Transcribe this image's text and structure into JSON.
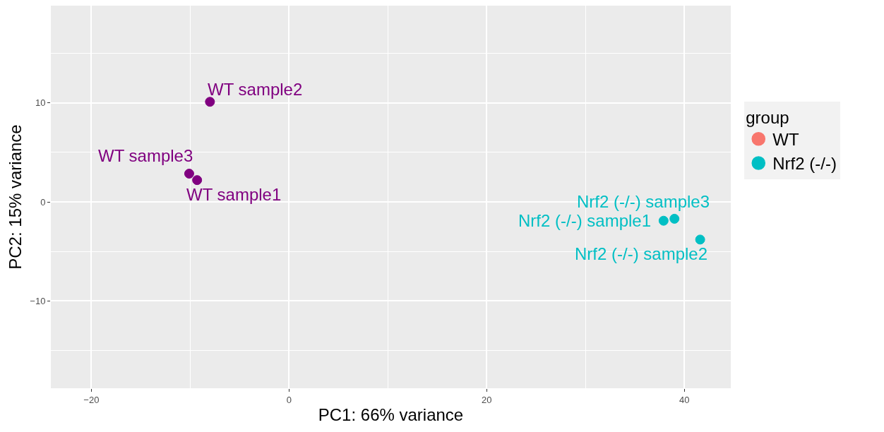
{
  "chart_data": {
    "type": "scatter",
    "xlabel": "PC1: 66% variance",
    "ylabel": "PC2: 15% variance",
    "legend_title": "group",
    "series": [
      {
        "name": "WT",
        "color": "#f8766d",
        "colors": [
          "#800080",
          "#800080",
          "#800080"
        ],
        "x": [
          -9.3,
          -8.0,
          -10.1
        ],
        "values": [
          2.2,
          10.1,
          2.85
        ]
      },
      {
        "name": "Nrf2 (-/-)",
        "color": "#00bfc4",
        "x": [
          37.9,
          41.6,
          39.0
        ],
        "values": [
          -1.9,
          -3.8,
          -1.7
        ]
      }
    ],
    "annotations": [
      {
        "text": "WT sample1",
        "x": -9.3,
        "y": 2.2
      },
      {
        "text": "WT sample2",
        "x": -8.0,
        "y": 10.1
      },
      {
        "text": "WT sample3",
        "x": -10.1,
        "y": 2.85
      },
      {
        "text": "Nrf2 (-/-) sample1",
        "x": 37.9,
        "y": -1.9
      },
      {
        "text": "Nrf2 (-/-) sample2",
        "x": 41.6,
        "y": -3.8
      },
      {
        "text": "Nrf2 (-/-) sample3",
        "x": 39.0,
        "y": -1.7
      }
    ],
    "xlim": [
      -24.1,
      44.7
    ],
    "xticks": [
      -20,
      0,
      20,
      40
    ],
    "ylim": [
      -18.8,
      19.8
    ],
    "yticks": [
      -10,
      0,
      10
    ],
    "grid": true,
    "legend": "right",
    "marker": "circle"
  }
}
